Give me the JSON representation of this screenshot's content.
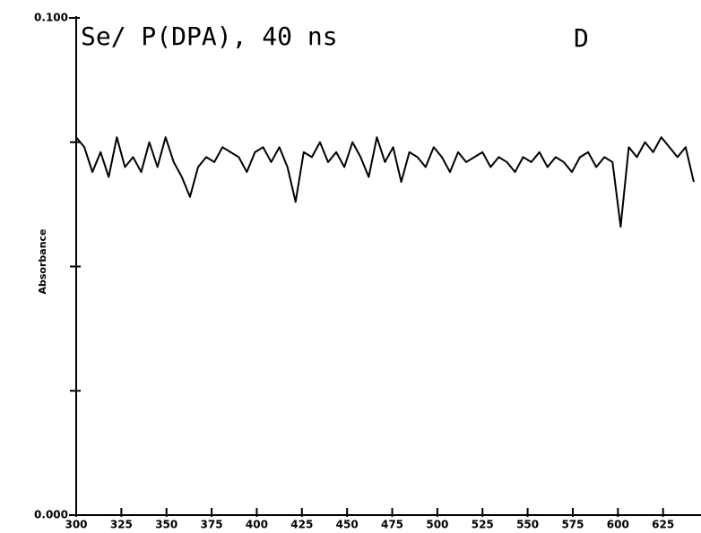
{
  "chart_data": {
    "type": "line",
    "title": "Se/ P(DPA), 40 ns",
    "annotation": "D",
    "y_label": "Absorbance",
    "x": [
      300,
      304.5,
      309,
      313.5,
      318,
      322.5,
      327,
      331.5,
      336,
      340.5,
      345,
      349.5,
      354,
      358.5,
      363,
      367.5,
      372,
      376.5,
      381,
      385.5,
      390,
      394.5,
      399,
      403.5,
      408,
      412.5,
      417,
      421.5,
      426,
      430.5,
      435,
      439.5,
      444,
      448.5,
      453,
      457.5,
      462,
      466.5,
      471,
      475.5,
      480,
      484.5,
      489,
      493.5,
      498,
      502.5,
      507,
      511.5,
      516,
      520.5,
      525,
      529.5,
      534,
      538.5,
      543,
      547.5,
      552,
      556.5,
      561,
      565.5,
      570,
      574.5,
      579,
      583.5,
      588,
      592.5,
      597,
      601.5,
      606,
      610.5,
      615,
      619.5,
      624,
      628.5,
      633,
      637.5,
      642
    ],
    "series": [
      {
        "color": "#000000",
        "values": [
          0.076,
          0.074,
          0.069,
          0.073,
          0.068,
          0.076,
          0.07,
          0.072,
          0.069,
          0.075,
          0.07,
          0.076,
          0.071,
          0.068,
          0.064,
          0.07,
          0.072,
          0.071,
          0.074,
          0.073,
          0.072,
          0.069,
          0.073,
          0.074,
          0.071,
          0.074,
          0.07,
          0.063,
          0.073,
          0.072,
          0.075,
          0.071,
          0.073,
          0.07,
          0.075,
          0.072,
          0.068,
          0.076,
          0.071,
          0.074,
          0.067,
          0.073,
          0.072,
          0.07,
          0.074,
          0.072,
          0.069,
          0.073,
          0.071,
          0.072,
          0.073,
          0.07,
          0.072,
          0.071,
          0.069,
          0.072,
          0.071,
          0.073,
          0.07,
          0.072,
          0.071,
          0.069,
          0.072,
          0.073,
          0.07,
          0.072,
          0.071,
          0.058,
          0.074,
          0.072,
          0.075,
          0.073,
          0.076,
          0.074,
          0.072,
          0.074,
          0.067
        ]
      }
    ],
    "xlim": [
      300,
      646
    ],
    "xticks": [
      300,
      325,
      350,
      375,
      400,
      425,
      450,
      475,
      500,
      525,
      550,
      575,
      600,
      625
    ],
    "ylim": [
      0,
      0.1
    ],
    "yticks": [
      {
        "value": 0,
        "label": "0.000"
      },
      {
        "value": 0.1,
        "label": "0.100"
      }
    ],
    "yminorticks": [
      0.025,
      0.05,
      0.075
    ]
  }
}
